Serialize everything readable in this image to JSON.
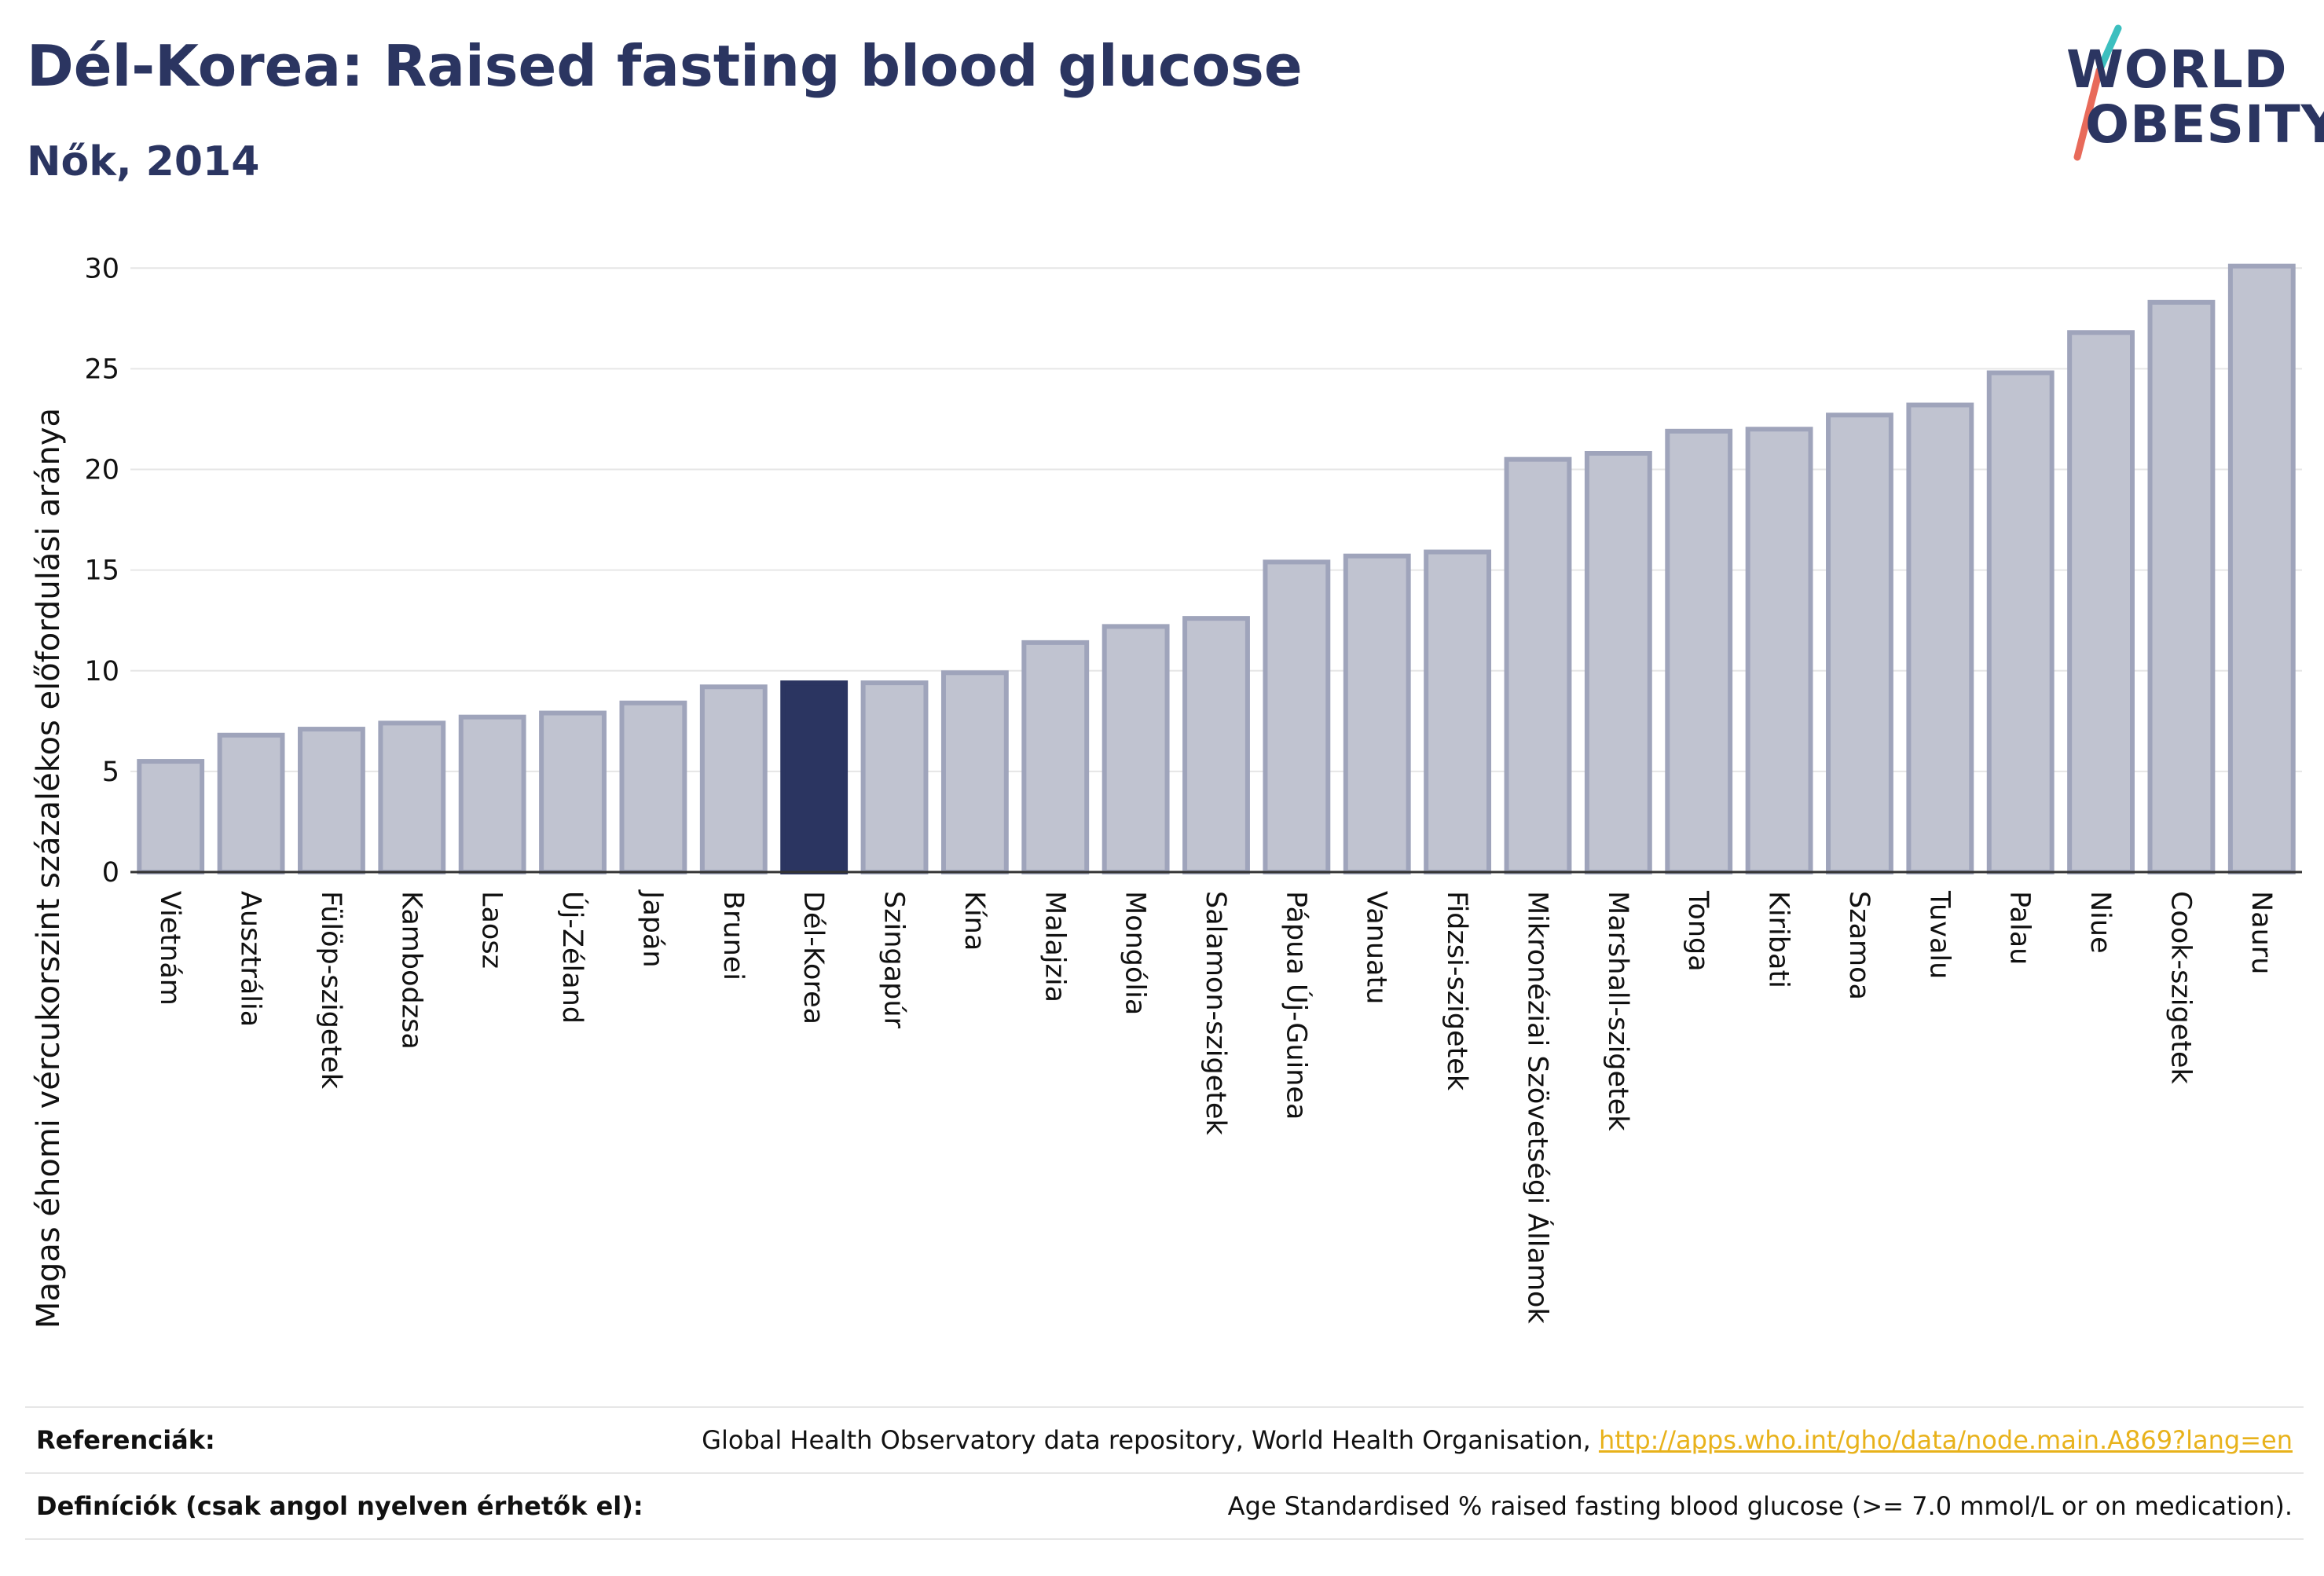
{
  "header": {
    "title": "Dél-Korea: Raised fasting blood glucose",
    "subtitle": "Nők, 2014"
  },
  "logo": {
    "line1": "WORLD",
    "line2": "OBESITY",
    "colors": {
      "navy": "#2b3561",
      "teal": "#3cbfbf",
      "coral": "#e86a5a"
    }
  },
  "chart_data": {
    "type": "bar",
    "title": "Dél-Korea: Raised fasting blood glucose",
    "subtitle": "Nők, 2014",
    "ylabel": "Magas éhomi vércukorszint százalékos előfordulási aránya",
    "xlabel": "",
    "ylim": [
      0,
      32
    ],
    "yticks": [
      0,
      5,
      10,
      15,
      20,
      25,
      30
    ],
    "grid": true,
    "highlight": "Dél-Korea",
    "colors": {
      "bar": "#c0c3d0",
      "bar_edge": "#9fa4bb",
      "highlight": "#2b3561",
      "grid": "#e6e6e6",
      "axis": "#333333"
    },
    "categories": [
      "Vietnám",
      "Ausztrália",
      "Fülöp-szigetek",
      "Kambodzsa",
      "Laosz",
      "Új-Zéland",
      "Japán",
      "Brunei",
      "Dél-Korea",
      "Szingapúr",
      "Kína",
      "Malajzia",
      "Mongólia",
      "Salamon-szigetek",
      "Pápua Új-Guinea",
      "Vanuatu",
      "Fidzsi-szigetek",
      "Mikronéziai Szövetségi Államok",
      "Marshall-szigetek",
      "Tonga",
      "Kiribati",
      "Szamoa",
      "Tuvalu",
      "Palau",
      "Niue",
      "Cook-szigetek",
      "Nauru"
    ],
    "values": [
      5.5,
      6.8,
      7.1,
      7.4,
      7.7,
      7.9,
      8.4,
      9.2,
      9.4,
      9.4,
      9.9,
      11.4,
      12.2,
      12.6,
      15.4,
      15.7,
      15.9,
      20.5,
      20.8,
      21.9,
      22.0,
      22.7,
      23.2,
      24.8,
      26.8,
      28.3,
      30.1
    ]
  },
  "footer": {
    "references_label": "Referenciák:",
    "references_text": "Global Health Observatory data repository, World Health Organisation, ",
    "references_link": "http://apps.who.int/gho/data/node.main.A869?lang=en",
    "definitions_label": "Definíciók (csak angol nyelven érhetők el):",
    "definitions_text": "Age Standardised % raised fasting blood glucose (>= 7.0 mmol/L or on medication)."
  }
}
